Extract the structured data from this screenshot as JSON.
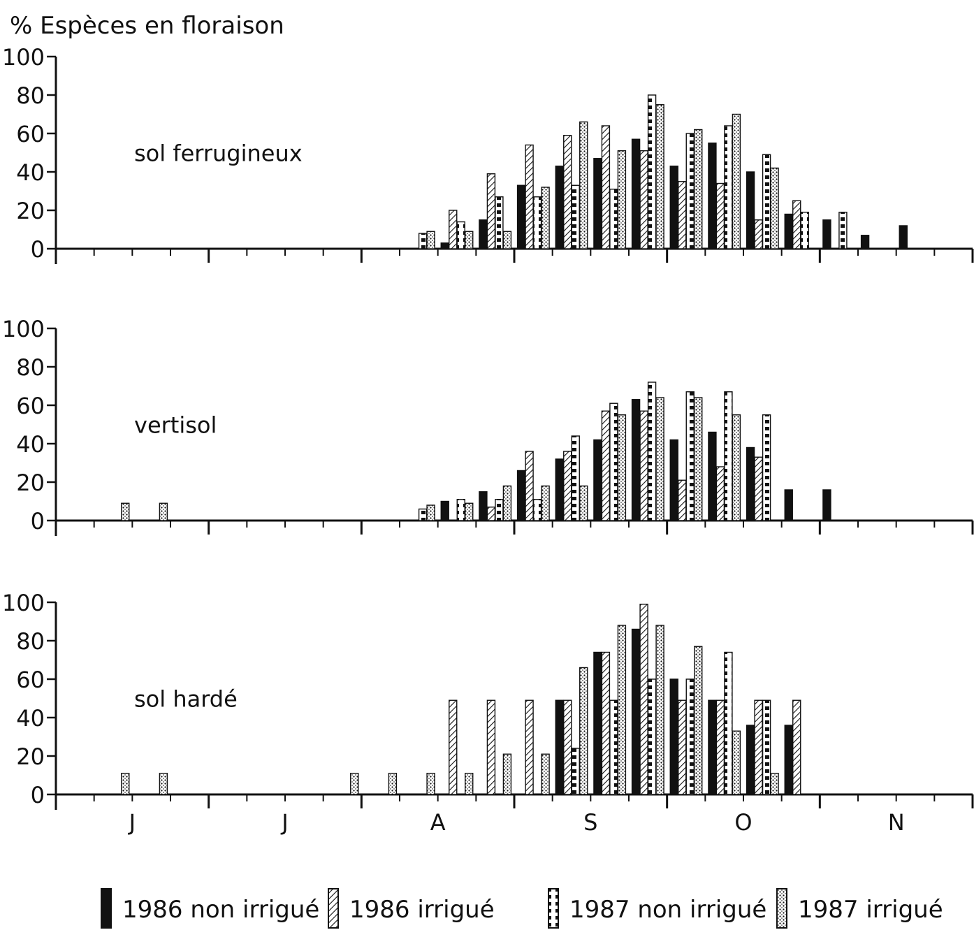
{
  "chart_data": {
    "type": "bar",
    "title": "% Espèces en floraison",
    "ylim": [
      0,
      100
    ],
    "yticks": [
      0,
      20,
      40,
      60,
      80,
      100
    ],
    "x_month_labels": [
      "J",
      "J",
      "A",
      "S",
      "O",
      "N"
    ],
    "x_unit": "week slot (4 per month, Jun–Nov)",
    "x_range": [
      0,
      24
    ],
    "series": [
      {
        "name": "1986 non irrigué",
        "pattern": "solid"
      },
      {
        "name": "1986 irrigué",
        "pattern": "hatch"
      },
      {
        "name": "1987 non irrigué",
        "pattern": "checker"
      },
      {
        "name": "1987 irrigué",
        "pattern": "dotted"
      }
    ],
    "panels": [
      {
        "label": "sol ferrugineux",
        "values": [
          {
            "week": 9,
            "series": [
              null,
              null,
              8,
              9
            ]
          },
          {
            "week": 10,
            "series": [
              3,
              20,
              14,
              9
            ]
          },
          {
            "week": 11,
            "series": [
              15,
              39,
              27,
              9
            ]
          },
          {
            "week": 12,
            "series": [
              33,
              54,
              27,
              32
            ]
          },
          {
            "week": 13,
            "series": [
              43,
              59,
              33,
              66
            ]
          },
          {
            "week": 14,
            "series": [
              47,
              64,
              31,
              51
            ]
          },
          {
            "week": 15,
            "series": [
              57,
              51,
              80,
              75
            ]
          },
          {
            "week": 16,
            "series": [
              43,
              35,
              60,
              62
            ]
          },
          {
            "week": 17,
            "series": [
              55,
              34,
              64,
              70
            ]
          },
          {
            "week": 18,
            "series": [
              40,
              15,
              49,
              42
            ]
          },
          {
            "week": 19,
            "series": [
              18,
              25,
              19,
              null
            ]
          },
          {
            "week": 20,
            "series": [
              15,
              null,
              19,
              null
            ]
          },
          {
            "week": 21,
            "series": [
              7,
              null,
              null,
              null
            ]
          },
          {
            "week": 22,
            "series": [
              12,
              null,
              null,
              null
            ]
          }
        ]
      },
      {
        "label": "vertisol",
        "values": [
          {
            "week": 1,
            "series": [
              null,
              null,
              null,
              9
            ]
          },
          {
            "week": 2,
            "series": [
              null,
              null,
              null,
              9
            ]
          },
          {
            "week": 9,
            "series": [
              null,
              null,
              6,
              8
            ]
          },
          {
            "week": 10,
            "series": [
              10,
              null,
              11,
              9
            ]
          },
          {
            "week": 11,
            "series": [
              15,
              7,
              11,
              18
            ]
          },
          {
            "week": 12,
            "series": [
              26,
              36,
              11,
              18
            ]
          },
          {
            "week": 13,
            "series": [
              32,
              36,
              44,
              18
            ]
          },
          {
            "week": 14,
            "series": [
              42,
              57,
              61,
              55
            ]
          },
          {
            "week": 15,
            "series": [
              63,
              57,
              72,
              64
            ]
          },
          {
            "week": 16,
            "series": [
              42,
              21,
              67,
              64
            ]
          },
          {
            "week": 17,
            "series": [
              46,
              28,
              67,
              55
            ]
          },
          {
            "week": 18,
            "series": [
              38,
              33,
              55,
              null
            ]
          },
          {
            "week": 19,
            "series": [
              16,
              null,
              null,
              null
            ]
          },
          {
            "week": 20,
            "series": [
              16,
              null,
              null,
              null
            ]
          }
        ]
      },
      {
        "label": "sol hardé",
        "values": [
          {
            "week": 1,
            "series": [
              null,
              null,
              null,
              11
            ]
          },
          {
            "week": 2,
            "series": [
              null,
              null,
              null,
              11
            ]
          },
          {
            "week": 7,
            "series": [
              null,
              null,
              null,
              11
            ]
          },
          {
            "week": 8,
            "series": [
              null,
              null,
              null,
              11
            ]
          },
          {
            "week": 9,
            "series": [
              null,
              null,
              null,
              11
            ]
          },
          {
            "week": 10,
            "series": [
              null,
              49,
              null,
              11
            ]
          },
          {
            "week": 11,
            "series": [
              null,
              49,
              null,
              21
            ]
          },
          {
            "week": 12,
            "series": [
              null,
              49,
              null,
              21
            ]
          },
          {
            "week": 13,
            "series": [
              49,
              49,
              24,
              66
            ]
          },
          {
            "week": 14,
            "series": [
              74,
              74,
              49,
              88
            ]
          },
          {
            "week": 15,
            "series": [
              86,
              99,
              60,
              88
            ]
          },
          {
            "week": 16,
            "series": [
              60,
              49,
              60,
              77
            ]
          },
          {
            "week": 17,
            "series": [
              49,
              49,
              74,
              33
            ]
          },
          {
            "week": 18,
            "series": [
              36,
              49,
              49,
              11
            ]
          },
          {
            "week": 19,
            "series": [
              36,
              49,
              null,
              null
            ]
          }
        ]
      }
    ]
  },
  "colors": {
    "ink": "#111111",
    "paper": "#ffffff"
  }
}
